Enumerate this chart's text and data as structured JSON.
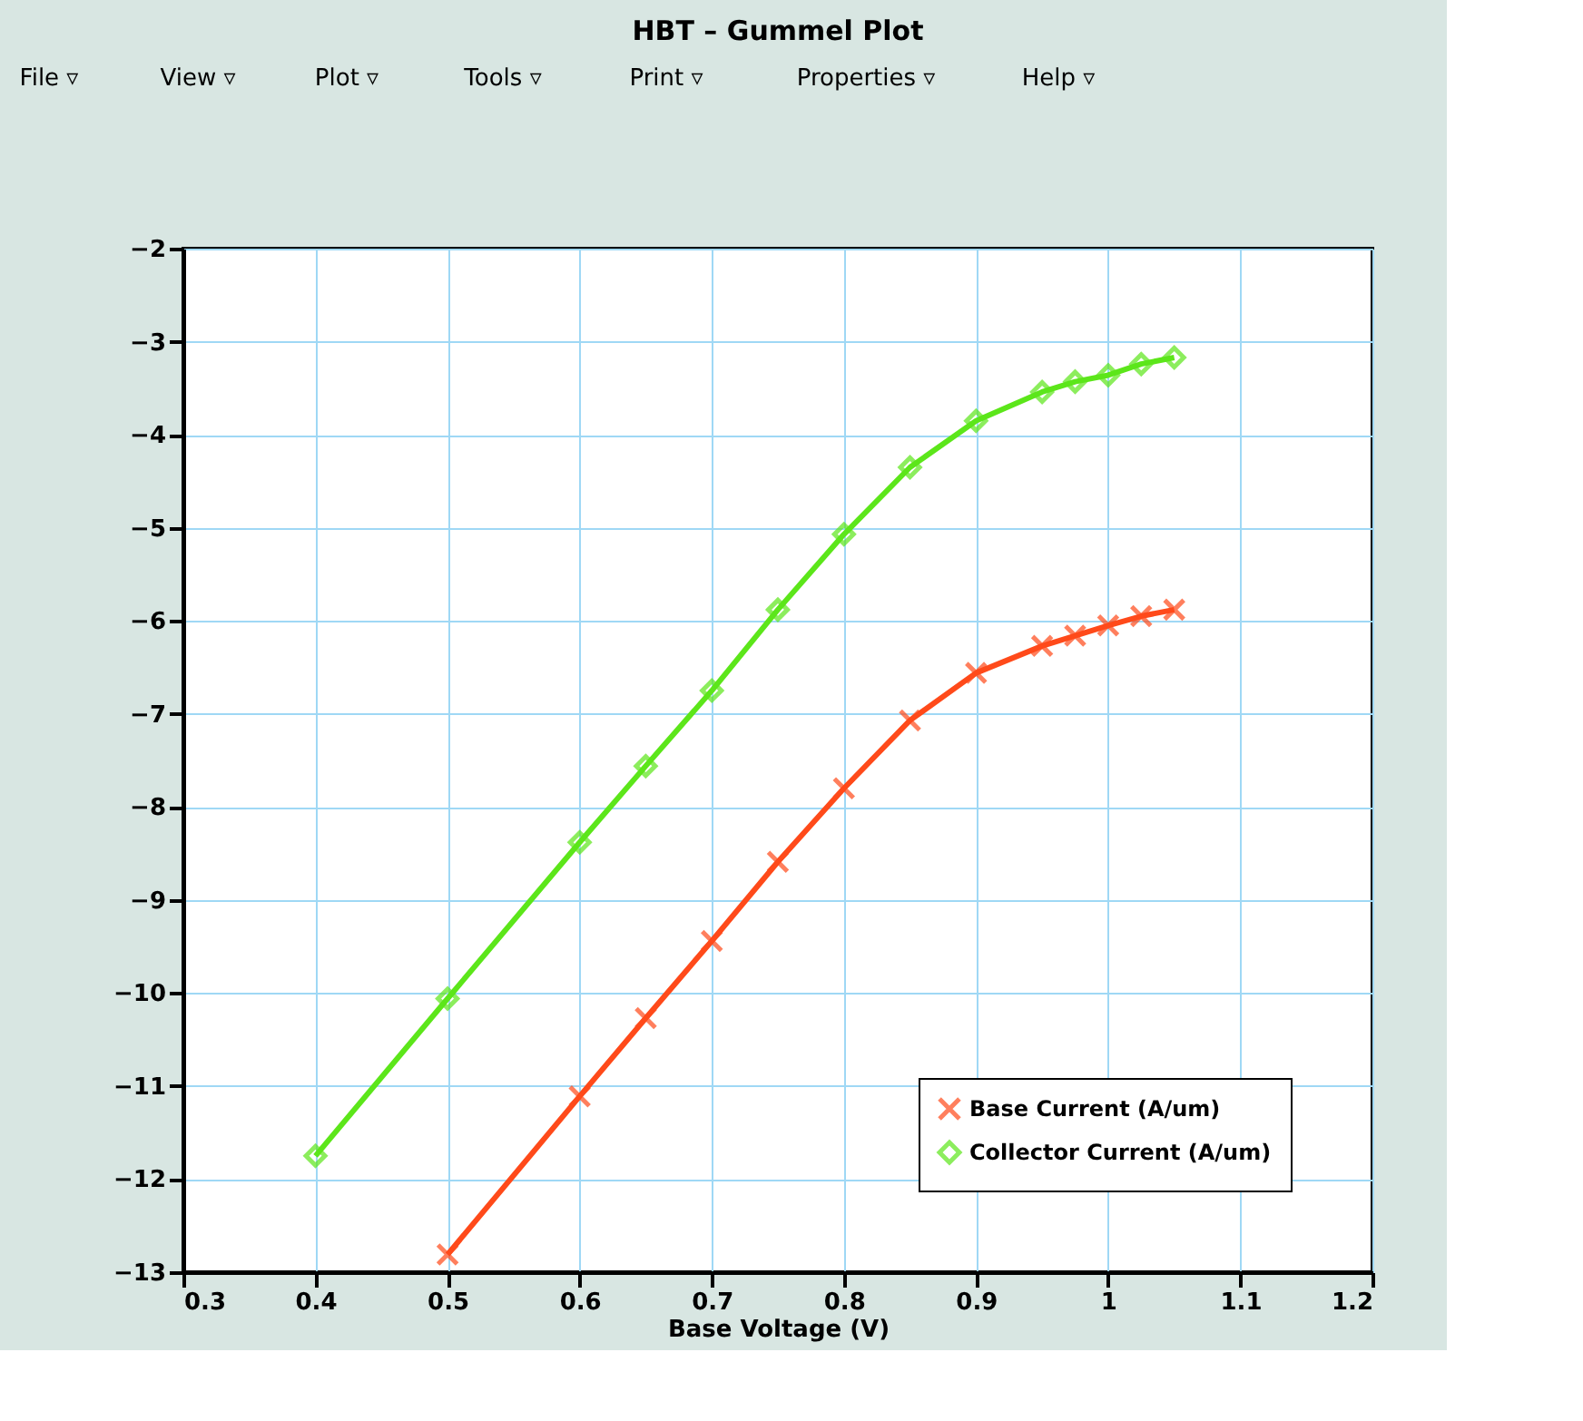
{
  "chart_data": {
    "type": "line",
    "title": "HBT – Gummel Plot",
    "xlabel": "Base Voltage (V)",
    "annotations": [
      "File ▿",
      "View ▿",
      "Plot ▿",
      "Tools ▿",
      "Print ▿",
      "Properties ▿",
      "Help ▿"
    ],
    "xlim": [
      0.3,
      1.2
    ],
    "xticks": [
      0.3,
      0.4,
      0.5,
      0.6,
      0.7,
      0.8,
      0.9,
      1,
      1.1,
      1.2
    ],
    "ylim": [
      -13,
      -2
    ],
    "yticks": [
      -13,
      -12,
      -11,
      -10,
      -9,
      -8,
      -7,
      -6,
      -5,
      -4,
      -3,
      -2
    ],
    "grid": true,
    "legend": "bottom right",
    "line_style": "solid",
    "series": [
      {
        "name": "Base Current (A/um)",
        "color": "#ff4a1a",
        "marker": "cross",
        "x": [
          0.5,
          0.6,
          0.65,
          0.7,
          0.75,
          0.8,
          0.85,
          0.9,
          0.95,
          0.975,
          1.0,
          1.025,
          1.05
        ],
        "values": [
          -12.81,
          -11.11,
          -10.27,
          -9.44,
          -8.59,
          -7.8,
          -7.07,
          -6.56,
          -6.27,
          -6.16,
          -6.05,
          -5.95,
          -5.88
        ]
      },
      {
        "name": "Collector Current (A/um)",
        "color": "#5ce61a",
        "marker": "diamond",
        "x": [
          0.4,
          0.5,
          0.6,
          0.65,
          0.7,
          0.75,
          0.8,
          0.85,
          0.9,
          0.95,
          0.975,
          1.0,
          1.025,
          1.05
        ],
        "values": [
          -11.75,
          -10.06,
          -8.38,
          -7.56,
          -6.75,
          -5.88,
          -5.07,
          -4.35,
          -3.85,
          -3.54,
          -3.43,
          -3.36,
          -3.24,
          -3.17
        ]
      }
    ]
  }
}
